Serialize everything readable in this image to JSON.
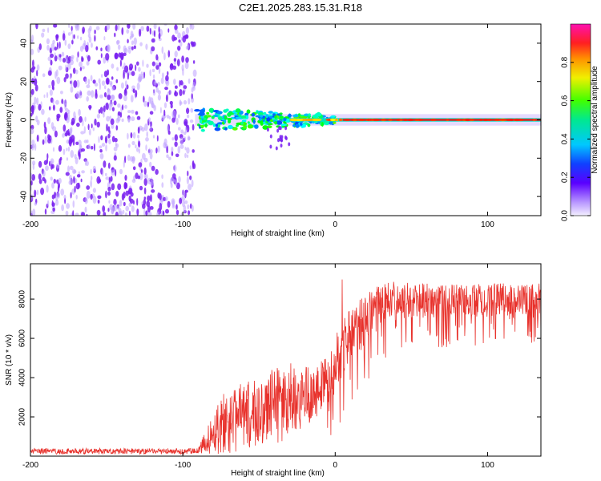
{
  "title": "C2E1.2025.283.15.31.R18",
  "chart_data": [
    {
      "type": "heatmap",
      "title": "C2E1.2025.283.15.31.R18",
      "xlabel": "Height of straight line (km)",
      "ylabel": "Frequency (Hz)",
      "xlim": [
        -200,
        135
      ],
      "ylim": [
        -50,
        50
      ],
      "xticks": [
        -200,
        -100,
        0,
        100
      ],
      "yticks": [
        -40,
        -20,
        0,
        20,
        40
      ],
      "colorbar": {
        "label": "Normalized spectral amplitude",
        "range": [
          0,
          1
        ],
        "ticks": [
          0.0,
          0.2,
          0.4,
          0.6,
          0.8
        ],
        "tick_labels": [
          "0.0",
          "0.2",
          "0.4",
          "0.6",
          "0.8"
        ]
      },
      "regions": [
        {
          "name": "noise",
          "x_range": [
            -200,
            -92
          ],
          "freq_range": [
            -50,
            50
          ],
          "amplitude": 0.1
        },
        {
          "name": "signal-band",
          "x_range": [
            -92,
            0
          ],
          "freq_center": 0,
          "freq_halfwidth": 6,
          "amplitude": 0.5
        },
        {
          "name": "carrier-line",
          "x_range": [
            0,
            135
          ],
          "freq_center": 0,
          "freq_halfwidth": 1,
          "amplitude": 0.95
        }
      ]
    },
    {
      "type": "line",
      "xlabel": "Height of straight line (km)",
      "ylabel": "SNR (10 * v/v)",
      "xlim": [
        -200,
        135
      ],
      "ylim": [
        0,
        9800
      ],
      "xticks": [
        -200,
        -100,
        0,
        100
      ],
      "yticks": [
        2000,
        4000,
        6000,
        8000
      ],
      "series": [
        {
          "name": "SNR",
          "color": "#e8322c",
          "envelope_x": [
            -200,
            -90,
            -85,
            -75,
            -65,
            -55,
            -45,
            -35,
            -25,
            -15,
            -5,
            0,
            5,
            10,
            20,
            30,
            40,
            50,
            60,
            70,
            80,
            90,
            100,
            110,
            120,
            135
          ],
          "envelope_mean": [
            250,
            250,
            700,
            1700,
            1900,
            2100,
            2400,
            2700,
            3000,
            3300,
            3900,
            4700,
            5600,
            6200,
            7000,
            7700,
            7900,
            7900,
            7900,
            7800,
            7900,
            7900,
            8000,
            7900,
            7800,
            7900
          ],
          "envelope_spread": [
            150,
            150,
            600,
            1600,
            1700,
            1800,
            1900,
            2000,
            1800,
            1500,
            1300,
            1500,
            1600,
            1500,
            1300,
            1100,
            1000,
            900,
            900,
            900,
            900,
            900,
            900,
            900,
            900,
            900
          ]
        }
      ]
    }
  ]
}
